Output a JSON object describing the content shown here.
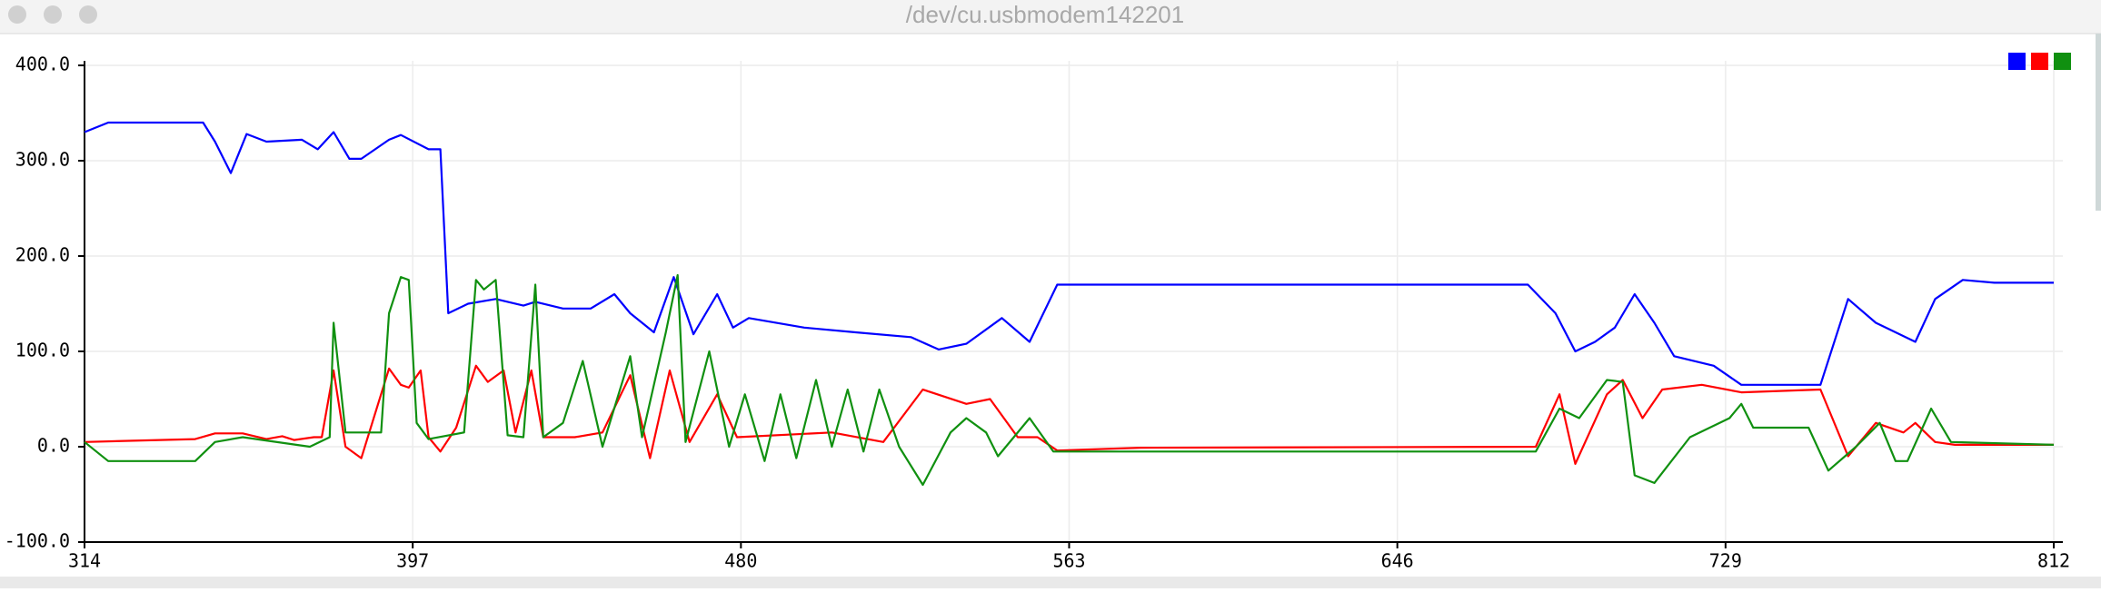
{
  "window_title": "/dev/cu.usbmodem142201",
  "chart_data": {
    "type": "line",
    "xlim": [
      314,
      812
    ],
    "xticks": [
      314,
      397,
      480,
      563,
      646,
      729,
      812
    ],
    "ylim": [
      -100,
      400
    ],
    "yticks": [
      {
        "value": -100,
        "label": "-100.0"
      },
      {
        "value": 0,
        "label": "0.0"
      },
      {
        "value": 100,
        "label": "100.0"
      },
      {
        "value": 200,
        "label": "200.0"
      },
      {
        "value": 300,
        "label": "300.0"
      },
      {
        "value": 400,
        "label": "400.0"
      }
    ],
    "grid": true,
    "legend": "top-right",
    "series": [
      {
        "color": "#0000ff",
        "x": [
          314,
          320,
          344,
          347,
          351,
          355,
          360,
          369,
          373,
          377,
          381,
          384,
          391,
          394,
          401,
          404,
          406,
          411,
          418,
          425,
          428,
          435,
          442,
          448,
          452,
          458,
          463,
          468,
          474,
          478,
          482,
          496,
          509,
          523,
          530,
          537,
          546,
          553,
          560,
          679,
          686,
          691,
          696,
          701,
          706,
          711,
          716,
          726,
          733,
          740,
          753,
          760,
          767,
          777,
          782,
          789,
          797,
          812
        ],
        "values": [
          330,
          340,
          340,
          320,
          287,
          328,
          320,
          322,
          312,
          330,
          302,
          302,
          322,
          327,
          312,
          312,
          140,
          150,
          155,
          148,
          152,
          145,
          145,
          160,
          140,
          120,
          178,
          118,
          160,
          125,
          135,
          125,
          120,
          115,
          102,
          108,
          135,
          110,
          170,
          170,
          140,
          100,
          110,
          125,
          160,
          130,
          95,
          85,
          65,
          65,
          65,
          155,
          130,
          110,
          155,
          175,
          172,
          172
        ]
      },
      {
        "color": "#ff0000",
        "x": [
          314,
          342,
          347,
          354,
          360,
          364,
          367,
          372,
          374,
          377,
          380,
          384,
          391,
          394,
          396,
          399,
          401,
          404,
          408,
          413,
          416,
          420,
          423,
          427,
          430,
          438,
          445,
          452,
          457,
          462,
          467,
          474,
          479,
          503,
          516,
          526,
          537,
          543,
          550,
          555,
          560,
          581,
          681,
          687,
          691,
          699,
          703,
          708,
          713,
          723,
          733,
          753,
          760,
          767,
          774,
          777,
          782,
          787,
          812
        ],
        "values": [
          5,
          8,
          14,
          14,
          8,
          11,
          7,
          10,
          10,
          80,
          0,
          -12,
          82,
          65,
          62,
          80,
          10,
          -5,
          20,
          85,
          68,
          80,
          15,
          80,
          10,
          10,
          15,
          75,
          -12,
          80,
          5,
          55,
          10,
          15,
          5,
          60,
          45,
          50,
          10,
          10,
          -4,
          -1,
          0,
          55,
          -18,
          55,
          70,
          30,
          60,
          65,
          57,
          60,
          -10,
          25,
          15,
          25,
          5,
          2,
          2
        ]
      },
      {
        "color": "#109010",
        "x": [
          314,
          320,
          342,
          347,
          354,
          371,
          376,
          377,
          380,
          389,
          391,
          394,
          396,
          398,
          401,
          410,
          413,
          415,
          418,
          421,
          425,
          428,
          430,
          435,
          440,
          445,
          452,
          455,
          461,
          464,
          466,
          472,
          477,
          481,
          486,
          490,
          494,
          499,
          503,
          507,
          511,
          515,
          520,
          526,
          533,
          537,
          542,
          545,
          553,
          559,
          681,
          687,
          692,
          699,
          703,
          706,
          711,
          720,
          730,
          733,
          736,
          750,
          755,
          762,
          768,
          772,
          775,
          781,
          786,
          812
        ],
        "values": [
          5,
          -15,
          -15,
          5,
          10,
          0,
          10,
          130,
          15,
          15,
          140,
          178,
          175,
          25,
          8,
          15,
          175,
          165,
          175,
          12,
          10,
          170,
          10,
          25,
          90,
          0,
          95,
          10,
          120,
          180,
          5,
          100,
          0,
          55,
          -15,
          55,
          -12,
          70,
          0,
          60,
          -5,
          60,
          0,
          -40,
          15,
          30,
          15,
          -10,
          30,
          -5,
          -5,
          40,
          30,
          70,
          68,
          -30,
          -38,
          10,
          30,
          45,
          20,
          20,
          -25,
          0,
          25,
          -15,
          -15,
          40,
          5,
          2
        ]
      }
    ]
  }
}
